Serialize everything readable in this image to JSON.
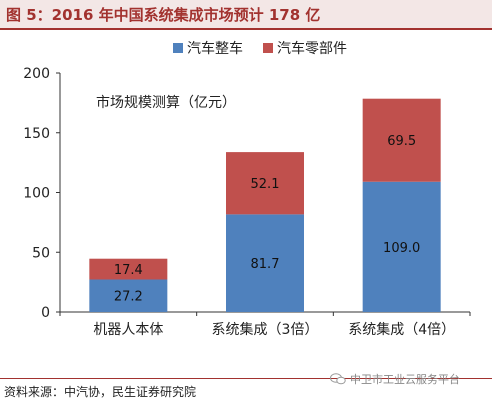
{
  "header": {
    "title": "图 5：2016 年中国系统集成市场预计 178 亿"
  },
  "footer": {
    "source": "资料来源：中汽协，民生证券研究院"
  },
  "watermark": {
    "text": "中卫市工业云服务平台",
    "icon": "wechat-icon"
  },
  "chart_data": {
    "type": "bar",
    "stacked": true,
    "annotation": "市场规模测算（亿元）",
    "categories": [
      "机器人本体",
      "系统集成（3倍）",
      "系统集成（4倍）"
    ],
    "series": [
      {
        "name": "汽车整车",
        "color": "#4f81bd",
        "values": [
          27.2,
          81.7,
          109.0
        ],
        "labels": [
          "27.2",
          "81.7",
          "109.0"
        ]
      },
      {
        "name": "汽车零部件",
        "color": "#c0504d",
        "values": [
          17.4,
          52.1,
          69.5
        ],
        "labels": [
          "17.4",
          "52.1",
          "69.5"
        ]
      }
    ],
    "ylim": [
      0,
      200
    ],
    "yticks": [
      0,
      50,
      100,
      150,
      200
    ],
    "legend_position": "top",
    "grid": false
  }
}
